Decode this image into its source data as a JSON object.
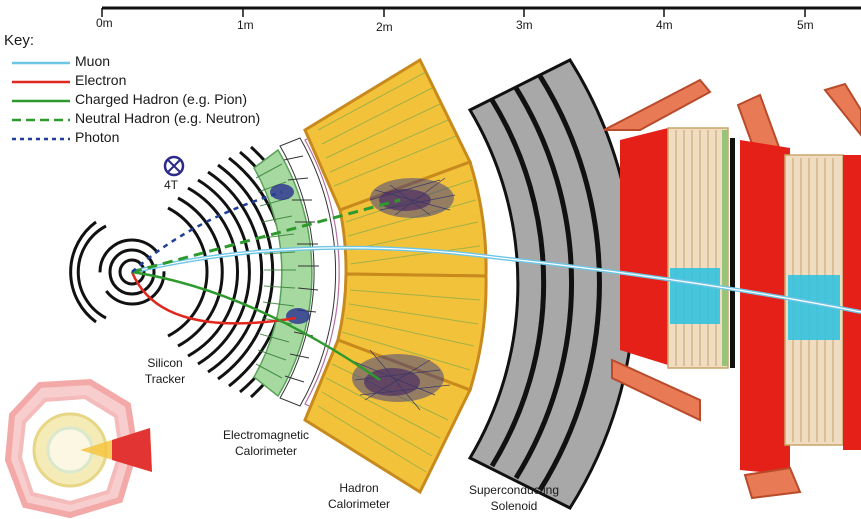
{
  "scale": {
    "ticks": [
      "0m",
      "1m",
      "2m",
      "3m",
      "4m",
      "5m"
    ]
  },
  "key": {
    "title": "Key:",
    "items": [
      {
        "label": "Muon",
        "color": "#6ec6e6",
        "style": "solid"
      },
      {
        "label": "Electron",
        "color": "#e0281f",
        "style": "solid"
      },
      {
        "label": "Charged Hadron (e.g. Pion)",
        "color": "#2e9a2e",
        "style": "solid"
      },
      {
        "label": "Neutral Hadron (e.g. Neutron)",
        "color": "#2e9a2e",
        "style": "dashed"
      },
      {
        "label": "Photon",
        "color": "#1f3f9a",
        "style": "dotted"
      }
    ]
  },
  "field": {
    "value": "4T"
  },
  "detectors": {
    "tracker": [
      "Silicon",
      "Tracker"
    ],
    "ecal": [
      "Electromagnetic",
      "Calorimeter"
    ],
    "hcal": [
      "Hadron",
      "Calorimeter"
    ],
    "solenoid": [
      "Superconducting",
      "Solenoid"
    ]
  },
  "colors": {
    "tracker_rings": "#111111",
    "ecal": "#a6d9a0",
    "hcal": "#f2c23a",
    "hcal_border": "#c88a1c",
    "solenoid": "#a8a8a8",
    "iron_yoke": "#e52019",
    "muon_chambers": "#f0dcc0",
    "muon_drift": "#33c2e0"
  }
}
